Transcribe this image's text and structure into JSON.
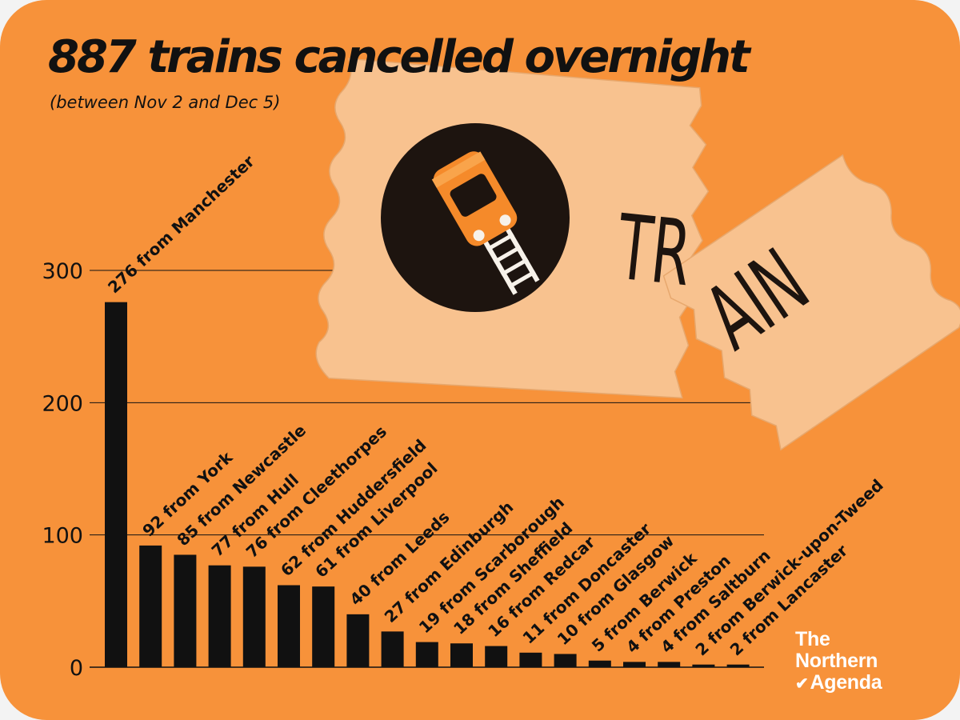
{
  "headline": {
    "title": "887 trains cancelled overnight",
    "subtitle": "(between Nov 2 and Dec 5)"
  },
  "illustration": {
    "ticket_text_left": "TR",
    "ticket_text_right": "AIN",
    "icon": "train-on-tracks-icon"
  },
  "logo": {
    "line1": "The",
    "line2": "Northern",
    "line3": "Agenda",
    "mark": "checkmark-icon"
  },
  "colors": {
    "background": "#f7923a",
    "bars": "#111111",
    "ticket": "#f8c28f",
    "text": "#111111"
  },
  "chart_data": {
    "type": "bar",
    "title": "887 trains cancelled overnight",
    "subtitle": "(between Nov 2 and Dec 5)",
    "xlabel": "",
    "ylabel": "",
    "ylim": [
      0,
      300
    ],
    "yticks": [
      0,
      100,
      200,
      300
    ],
    "grid": true,
    "legend": "none",
    "categories": [
      "Manchester",
      "York",
      "Newcastle",
      "Hull",
      "Cleethorpes",
      "Huddersfield",
      "Liverpool",
      "Leeds",
      "Edinburgh",
      "Scarborough",
      "Sheffield",
      "Redcar",
      "Doncaster",
      "Glasgow",
      "Berwick",
      "Preston",
      "Saltburn",
      "Berwick-upon-Tweed",
      "Lancaster"
    ],
    "values": [
      276,
      92,
      85,
      77,
      76,
      62,
      61,
      40,
      27,
      19,
      18,
      16,
      11,
      10,
      5,
      4,
      4,
      2,
      2
    ],
    "labels": [
      "276 from Manchester",
      "92 from York",
      "85 from Newcastle",
      "77 from Hull",
      "76 from Cleethorpes",
      "62 from Huddersfield",
      "61 from Liverpool",
      "40 from Leeds",
      "27 from Edinburgh",
      "19 from Scarborough",
      "18 from Sheffield",
      "16 from Redcar",
      "11 from Doncaster",
      "10 from Glasgow",
      "5 from Berwick",
      "4 from Preston",
      "4 from Saltburn",
      "2 from Berwick-upon-Tweed",
      "2 from Lancaster"
    ]
  }
}
